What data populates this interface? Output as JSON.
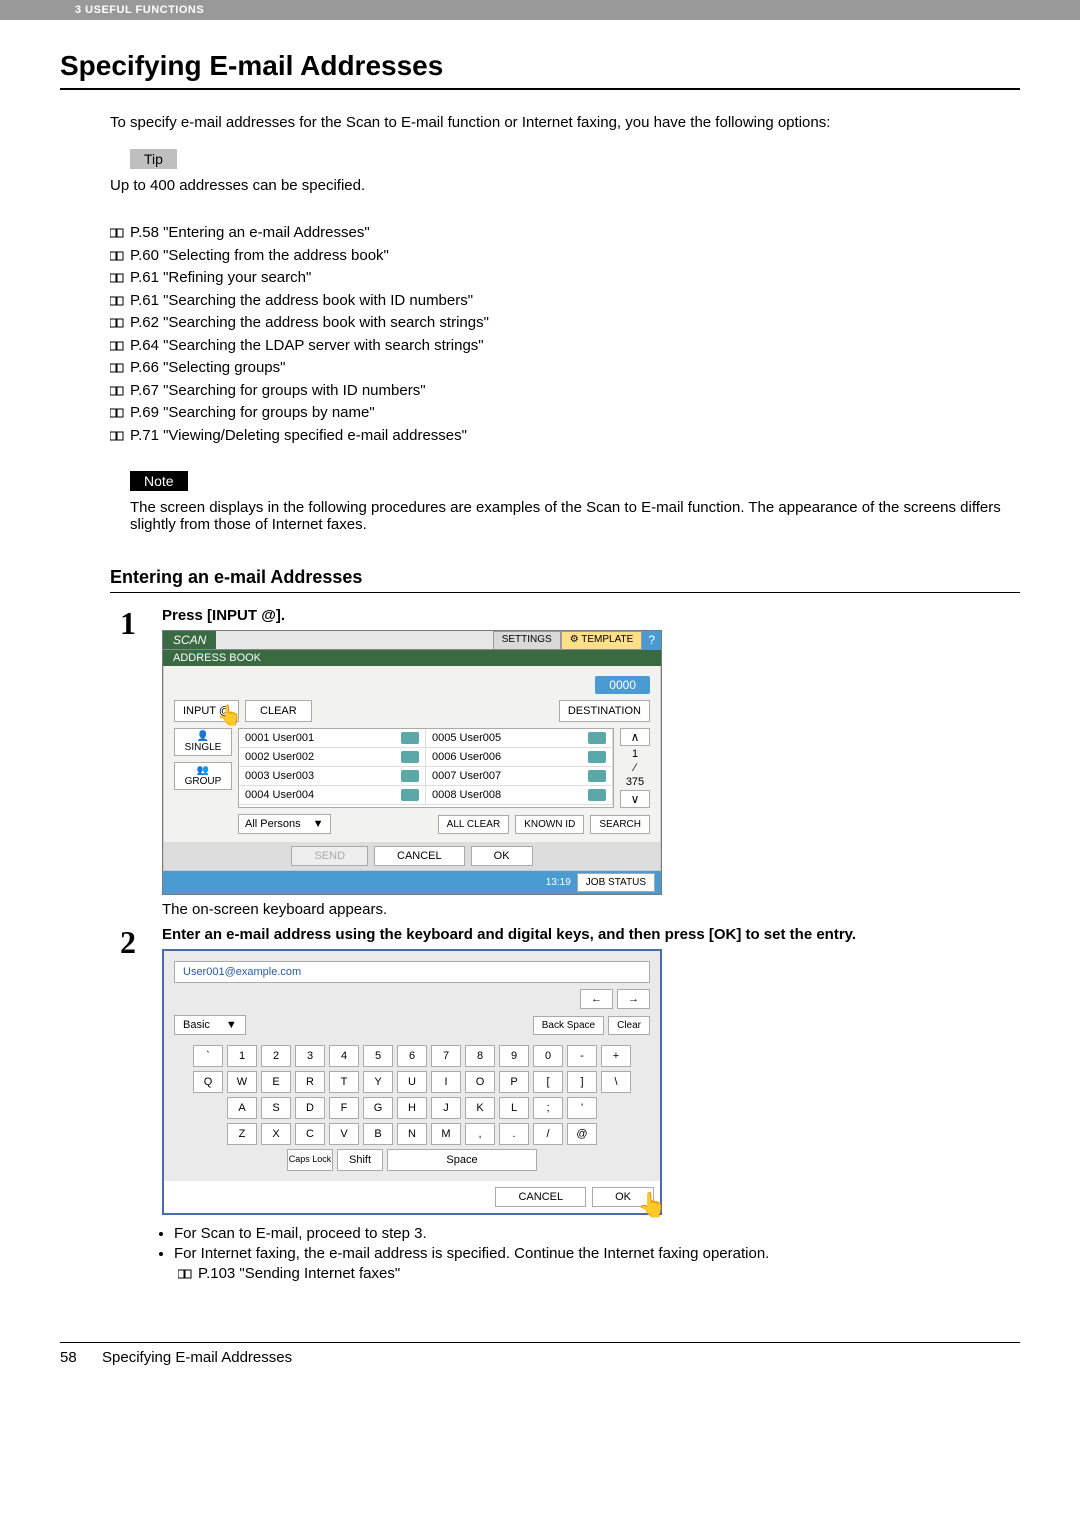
{
  "header": {
    "chapter": "3 USEFUL FUNCTIONS"
  },
  "title": "Specifying E-mail Addresses",
  "intro": "To specify e-mail addresses for the Scan to E-mail function or Internet faxing, you have the following options:",
  "tip": {
    "label": "Tip",
    "text": "Up to 400 addresses can be specified."
  },
  "refs": [
    "P.58 \"Entering an e-mail Addresses\"",
    "P.60 \"Selecting from the address book\"",
    "P.61 \"Refining your search\"",
    "P.61 \"Searching the address book with ID numbers\"",
    "P.62 \"Searching the address book with search strings\"",
    "P.64 \"Searching the LDAP server with search strings\"",
    "P.66 \"Selecting groups\"",
    "P.67 \"Searching for groups with ID numbers\"",
    "P.69 \"Searching for groups by name\"",
    "P.71 \"Viewing/Deleting specified e-mail addresses\""
  ],
  "note": {
    "label": "Note",
    "text": "The screen displays in the following procedures are examples of the Scan to E-mail function. The appearance of the screens differs slightly from those of Internet faxes."
  },
  "subtitle": "Entering an e-mail Addresses",
  "step1": {
    "title": "Press [INPUT @].",
    "after": "The on-screen keyboard appears.",
    "screen": {
      "scan_tab": "SCAN",
      "settings_btn": "SETTINGS",
      "template_btn": "TEMPLATE",
      "help_btn": "?",
      "addr_book": "ADDRESS BOOK",
      "counter": "0000",
      "input_btn": "INPUT @",
      "clear_btn": "CLEAR",
      "dest_btn": "DESTINATION",
      "single_lbl": "SINGLE",
      "group_lbl": "GROUP",
      "rows_left": [
        {
          "id": "0001",
          "name": "User001"
        },
        {
          "id": "0002",
          "name": "User002"
        },
        {
          "id": "0003",
          "name": "User003"
        },
        {
          "id": "0004",
          "name": "User004"
        }
      ],
      "rows_right": [
        {
          "id": "0005",
          "name": "User005"
        },
        {
          "id": "0006",
          "name": "User006"
        },
        {
          "id": "0007",
          "name": "User007"
        },
        {
          "id": "0008",
          "name": "User008"
        }
      ],
      "page_cur": "1",
      "page_total": "375",
      "all_persons": "All Persons",
      "all_clear": "ALL CLEAR",
      "known_id": "KNOWN ID",
      "search": "SEARCH",
      "send_btn": "SEND",
      "cancel_btn": "CANCEL",
      "ok_btn": "OK",
      "time": "13:19",
      "job_status": "JOB STATUS"
    }
  },
  "step2": {
    "title": "Enter an e-mail address using the keyboard and digital keys, and then press [OK] to set the entry.",
    "kb": {
      "input_value": "User001@example.com",
      "basic": "Basic",
      "backspace": "Back Space",
      "clear": "Clear",
      "row1": [
        "`",
        "1",
        "2",
        "3",
        "4",
        "5",
        "6",
        "7",
        "8",
        "9",
        "0",
        "-",
        "+"
      ],
      "row2": [
        "Q",
        "W",
        "E",
        "R",
        "T",
        "Y",
        "U",
        "I",
        "O",
        "P",
        "[",
        "]",
        "\\"
      ],
      "row3": [
        "A",
        "S",
        "D",
        "F",
        "G",
        "H",
        "J",
        "K",
        "L",
        ";",
        "'"
      ],
      "row4": [
        "Z",
        "X",
        "C",
        "V",
        "B",
        "N",
        "M",
        ",",
        ".",
        "/",
        "@"
      ],
      "caps": "Caps Lock",
      "shift": "Shift",
      "space": "Space",
      "cancel": "CANCEL",
      "ok": "OK"
    },
    "bullets": [
      "For Scan to E-mail, proceed to step 3.",
      "For Internet faxing, the e-mail address is specified. Continue the Internet faxing operation."
    ],
    "subref": "P.103 \"Sending Internet faxes\""
  },
  "footer": {
    "page": "58",
    "title": "Specifying E-mail Addresses"
  }
}
